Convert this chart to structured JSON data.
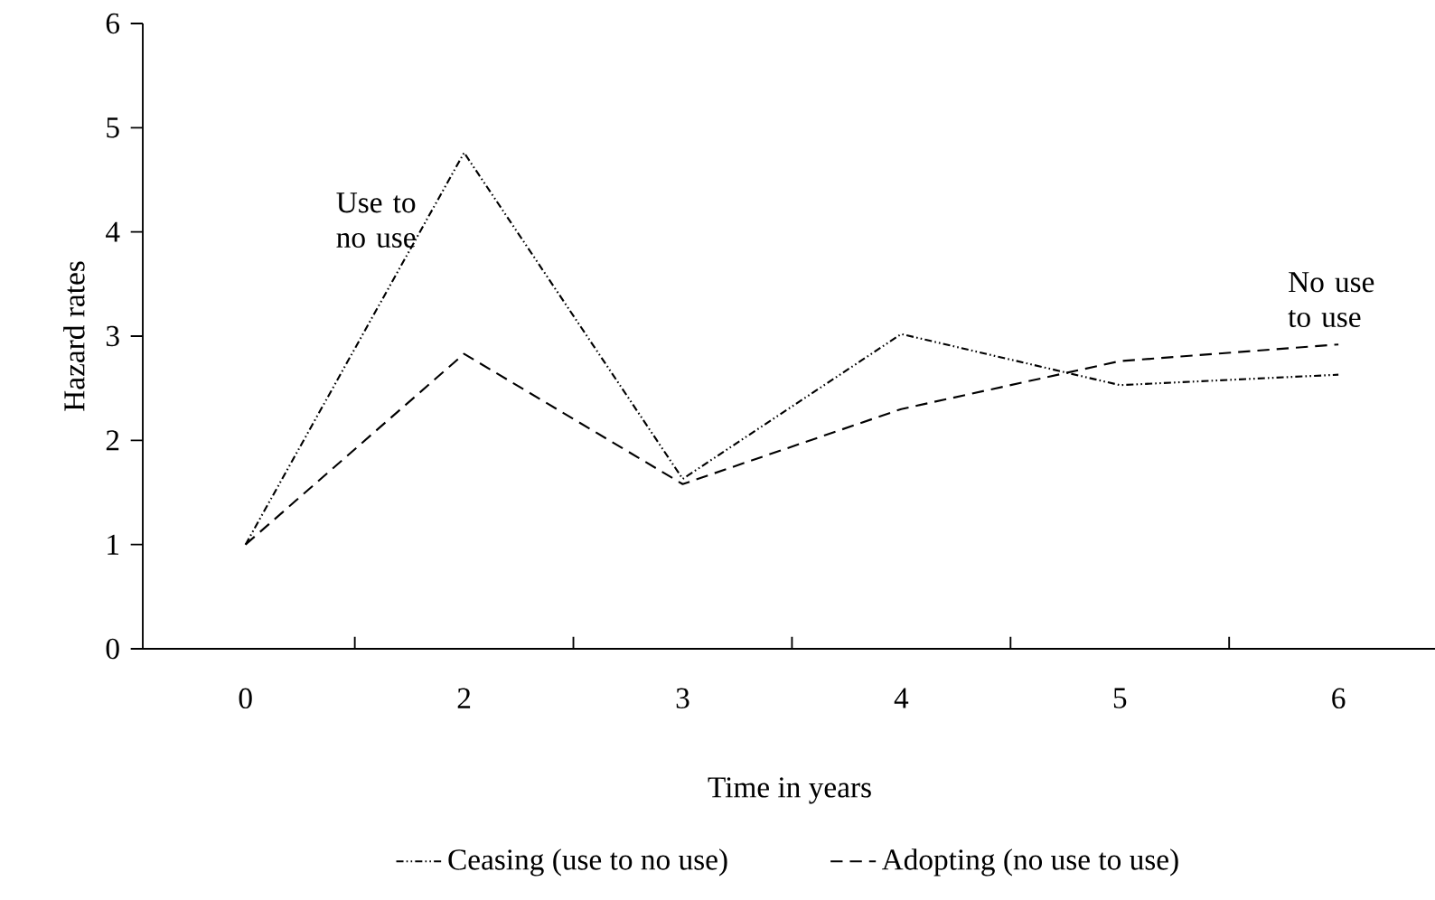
{
  "chart_data": {
    "type": "line",
    "xlabel": "Time in years",
    "ylabel": "Hazard rates",
    "categories": [
      "0",
      "2",
      "3",
      "4",
      "5",
      "6"
    ],
    "series": [
      {
        "name": "Ceasing  (use to no use)",
        "color": "#000000",
        "line_style": "dashdotdot",
        "values": [
          1.0,
          4.76,
          1.63,
          3.02,
          2.53,
          2.63
        ]
      },
      {
        "name": "Adopting (no use to use)",
        "color": "#000000",
        "line_style": "dashed",
        "values": [
          1.0,
          2.83,
          1.58,
          2.3,
          2.76,
          2.92
        ]
      }
    ],
    "ylim": [
      0,
      6
    ],
    "yticks": [
      0,
      1,
      2,
      3,
      4,
      5,
      6
    ],
    "grid": false,
    "legend": "bottom",
    "marker": "none",
    "annotations": [
      {
        "text": "Use to no use",
        "x": "2",
        "y": 4.76
      },
      {
        "text": "No use to use",
        "x": "6",
        "y": 2.92
      }
    ]
  }
}
